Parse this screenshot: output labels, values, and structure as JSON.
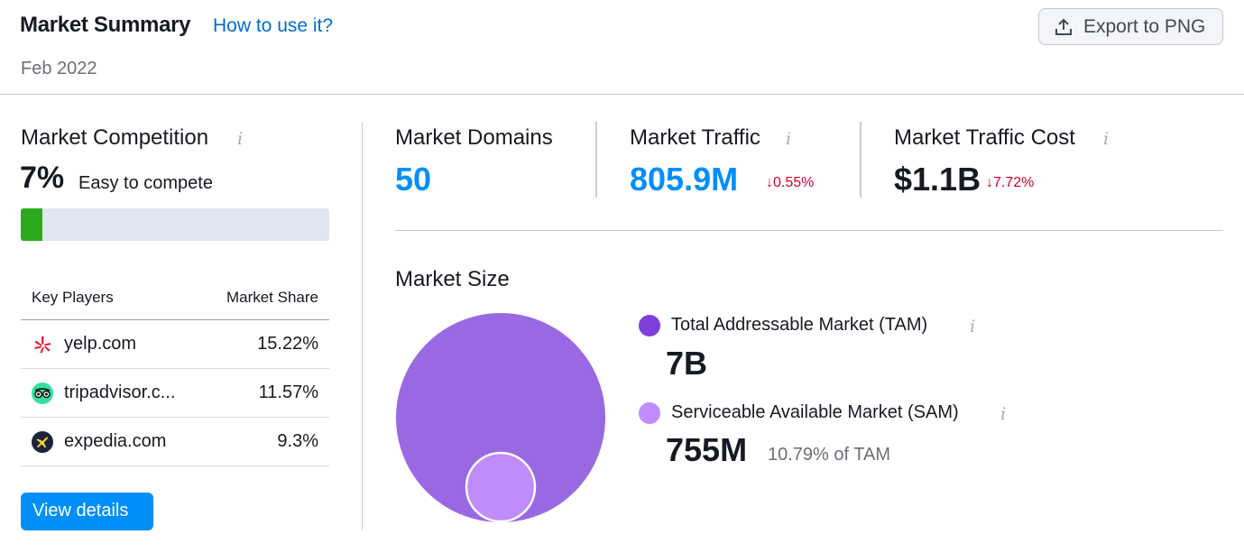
{
  "header": {
    "title": "Market Summary",
    "help_link": "How to use it?",
    "date": "Feb 2022",
    "export_label": "Export to PNG"
  },
  "competition": {
    "title": "Market Competition",
    "info": "i",
    "value": "7%",
    "description": "Easy to compete",
    "progress_percent": 7,
    "progress_color": "#2bab1c"
  },
  "key_players": {
    "col_player": "Key Players",
    "col_share": "Market Share",
    "rows": [
      {
        "domain": "yelp.com",
        "share": "15.22%",
        "icon": "yelp-icon"
      },
      {
        "domain": "tripadvisor.c...",
        "share": "11.57%",
        "icon": "tripadvisor-icon"
      },
      {
        "domain": "expedia.com",
        "share": "9.3%",
        "icon": "expedia-icon"
      }
    ]
  },
  "view_details": "View details",
  "metrics": {
    "domains": {
      "label": "Market Domains",
      "value": "50"
    },
    "traffic": {
      "label": "Market Traffic",
      "info": "i",
      "value": "805.9M",
      "change": "↓0.55%"
    },
    "cost": {
      "label": "Market Traffic Cost",
      "info": "i",
      "value": "$1.1B",
      "change": "↓7.72%"
    }
  },
  "market_size": {
    "title": "Market Size",
    "tam": {
      "label": "Total Addressable Market (TAM)",
      "info": "i",
      "value": "7B",
      "color": "#7e3fdb"
    },
    "sam": {
      "label": "Serviceable Available Market (SAM)",
      "info": "i",
      "value": "755M",
      "sub": "10.79% of TAM",
      "color": "#bf8cf9"
    }
  },
  "colors": {
    "accent_blue": "#008ff8",
    "link_blue": "#006dca",
    "negative_red": "#d1002f",
    "tam_circle": "#9969e3",
    "sam_circle": "#bf8cf9"
  }
}
